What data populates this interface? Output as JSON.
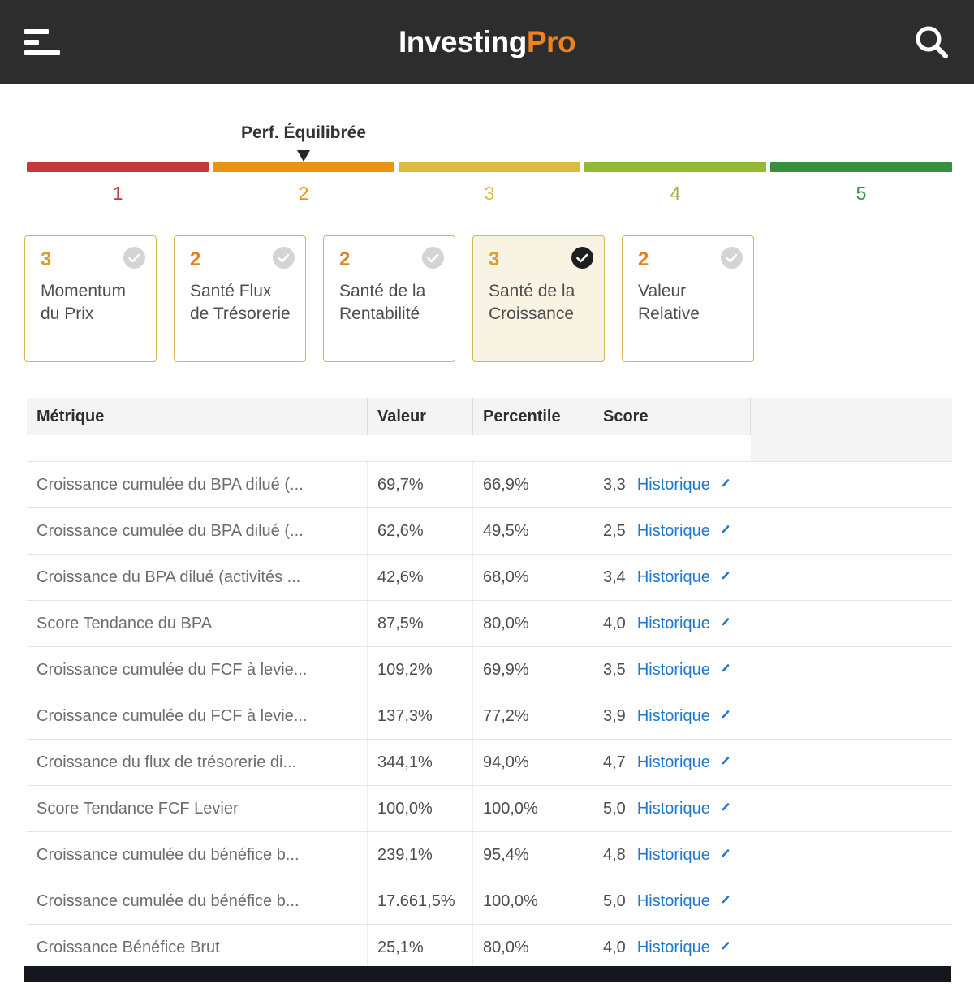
{
  "header": {
    "logo_main": "Investing",
    "logo_suffix": "Pro",
    "colors": {
      "bg": "#2d2d2d",
      "pro_accent": "#f0821e"
    }
  },
  "meter": {
    "label": "Perf. Équilibrée",
    "marker_segment": 2,
    "segments": [
      {
        "value": "1",
        "color": "#c53a36"
      },
      {
        "value": "2",
        "color": "#ea930e"
      },
      {
        "value": "3",
        "color": "#debb3d"
      },
      {
        "value": "4",
        "color": "#93b836"
      },
      {
        "value": "5",
        "color": "#35903b"
      }
    ]
  },
  "cards": [
    {
      "score": "3",
      "score_color": "#d3a02b",
      "label": "Momentum du Prix",
      "selected": false
    },
    {
      "score": "2",
      "score_color": "#e08124",
      "label": "Santé Flux de Trésorerie",
      "selected": false
    },
    {
      "score": "2",
      "score_color": "#e08124",
      "label": "Santé de la Rentabilité",
      "selected": false
    },
    {
      "score": "3",
      "score_color": "#d3a02b",
      "label": "Santé de la Croissance",
      "selected": true
    },
    {
      "score": "2",
      "score_color": "#e08124",
      "label": "Valeur Relative",
      "selected": false
    }
  ],
  "table": {
    "columns": [
      "Métrique",
      "Valeur",
      "Percentile",
      "Score"
    ],
    "history_label": "Historique",
    "link_color": "#2178cd",
    "rows": [
      {
        "metric": "Croissance cumulée du BPA dilué (...",
        "value": "69,7%",
        "percentile": "66,9%",
        "score": "3,3"
      },
      {
        "metric": "Croissance cumulée du BPA dilué (...",
        "value": "62,6%",
        "percentile": "49,5%",
        "score": "2,5"
      },
      {
        "metric": "Croissance du BPA dilué (activités ...",
        "value": "42,6%",
        "percentile": "68,0%",
        "score": "3,4"
      },
      {
        "metric": "Score Tendance du BPA",
        "value": "87,5%",
        "percentile": "80,0%",
        "score": "4,0"
      },
      {
        "metric": "Croissance cumulée du FCF à levie...",
        "value": "109,2%",
        "percentile": "69,9%",
        "score": "3,5"
      },
      {
        "metric": "Croissance cumulée du FCF à levie...",
        "value": "137,3%",
        "percentile": "77,2%",
        "score": "3,9"
      },
      {
        "metric": "Croissance du flux de trésorerie di...",
        "value": "344,1%",
        "percentile": "94,0%",
        "score": "4,7"
      },
      {
        "metric": "Score Tendance FCF Levier",
        "value": "100,0%",
        "percentile": "100,0%",
        "score": "5,0"
      },
      {
        "metric": "Croissance cumulée du bénéfice b...",
        "value": "239,1%",
        "percentile": "95,4%",
        "score": "4,8"
      },
      {
        "metric": "Croissance cumulée du bénéfice b...",
        "value": "17.661,5%",
        "percentile": "100,0%",
        "score": "5,0"
      },
      {
        "metric": "Croissance Bénéfice Brut",
        "value": "25,1%",
        "percentile": "80,0%",
        "score": "4,0"
      }
    ]
  }
}
